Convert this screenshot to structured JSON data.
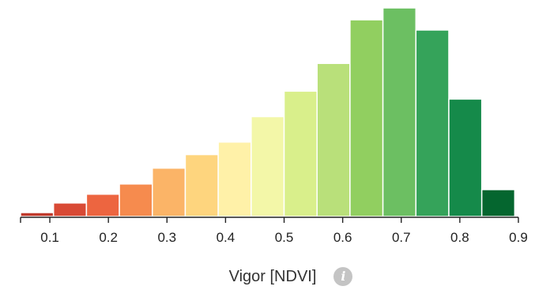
{
  "chart_data": {
    "type": "bar",
    "title": "",
    "xlabel": "Vigor [NDVI]",
    "ylabel": "",
    "xlim": [
      0.05,
      0.9
    ],
    "ylim": [
      0,
      100
    ],
    "ticks": [
      "0.1",
      "0.2",
      "0.3",
      "0.4",
      "0.5",
      "0.6",
      "0.7",
      "0.8",
      "0.9"
    ],
    "bins": [
      {
        "x0": 0.05,
        "x1": 0.10625,
        "value": 1.9,
        "color": "#c0392b"
      },
      {
        "x0": 0.10625,
        "x1": 0.1625,
        "value": 6.5,
        "color": "#d94a35"
      },
      {
        "x0": 0.1625,
        "x1": 0.21875,
        "value": 10.7,
        "color": "#ed6540"
      },
      {
        "x0": 0.21875,
        "x1": 0.275,
        "value": 15.6,
        "color": "#f68b4e"
      },
      {
        "x0": 0.275,
        "x1": 0.33125,
        "value": 23.2,
        "color": "#fbb467"
      },
      {
        "x0": 0.33125,
        "x1": 0.3875,
        "value": 29.7,
        "color": "#fed57e"
      },
      {
        "x0": 0.3875,
        "x1": 0.44375,
        "value": 35.7,
        "color": "#fff1a8"
      },
      {
        "x0": 0.44375,
        "x1": 0.5,
        "value": 47.9,
        "color": "#f3f7a8"
      },
      {
        "x0": 0.5,
        "x1": 0.55625,
        "value": 60.1,
        "color": "#d9ef8b"
      },
      {
        "x0": 0.55625,
        "x1": 0.6125,
        "value": 73.4,
        "color": "#b9e07a"
      },
      {
        "x0": 0.6125,
        "x1": 0.66875,
        "value": 94.3,
        "color": "#91cf60"
      },
      {
        "x0": 0.66875,
        "x1": 0.725,
        "value": 100.0,
        "color": "#6cbf62"
      },
      {
        "x0": 0.725,
        "x1": 0.78125,
        "value": 89.4,
        "color": "#35a35a"
      },
      {
        "x0": 0.78125,
        "x1": 0.8375,
        "value": 56.3,
        "color": "#158a4a"
      },
      {
        "x0": 0.8375,
        "x1": 0.89375,
        "value": 12.9,
        "color": "#05662f"
      }
    ]
  },
  "info_icon": {
    "glyph": "i",
    "color": "#c4c4c4"
  }
}
